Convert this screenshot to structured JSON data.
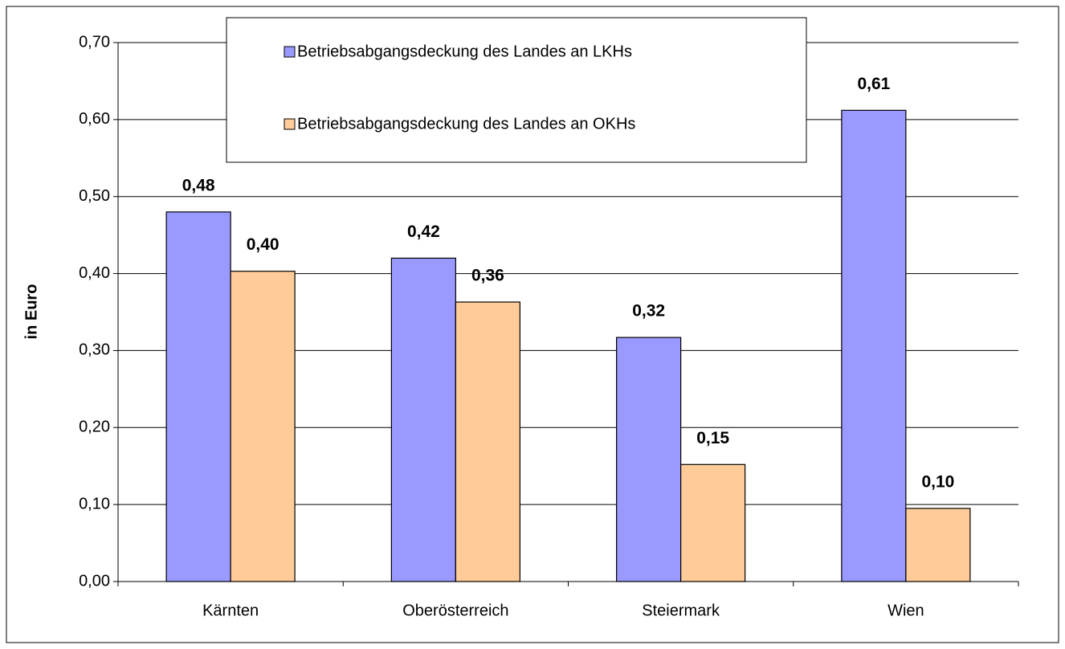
{
  "chart_data": {
    "type": "bar",
    "y_label": "in Euro",
    "categories": [
      "Kärnten",
      "Oberösterreich",
      "Steiermark",
      "Wien"
    ],
    "series": [
      {
        "name": "Betriebsabgangsdeckung des Landes an LKHs",
        "color": "#9999ff",
        "values": [
          0.48,
          0.42,
          0.317,
          0.612
        ],
        "value_labels": [
          "0,48",
          "0,42",
          "0,32",
          "0,61"
        ]
      },
      {
        "name": "Betriebsabgangsdeckung des Landes an OKHs",
        "color": "#ffcc99",
        "values": [
          0.403,
          0.363,
          0.152,
          0.095
        ],
        "value_labels": [
          "0,40",
          "0,36",
          "0,15",
          "0,10"
        ]
      }
    ],
    "ylim": [
      0,
      0.7
    ],
    "yticks": [
      {
        "value": 0,
        "label": "0,00"
      },
      {
        "value": 0.1,
        "label": "0,10"
      },
      {
        "value": 0.2,
        "label": "0,20"
      },
      {
        "value": 0.3,
        "label": "0,30"
      },
      {
        "value": 0.4,
        "label": "0,40"
      },
      {
        "value": 0.5,
        "label": "0,50"
      },
      {
        "value": 0.6,
        "label": "0,60"
      },
      {
        "value": 0.7,
        "label": "0,70"
      }
    ],
    "grid": true
  }
}
